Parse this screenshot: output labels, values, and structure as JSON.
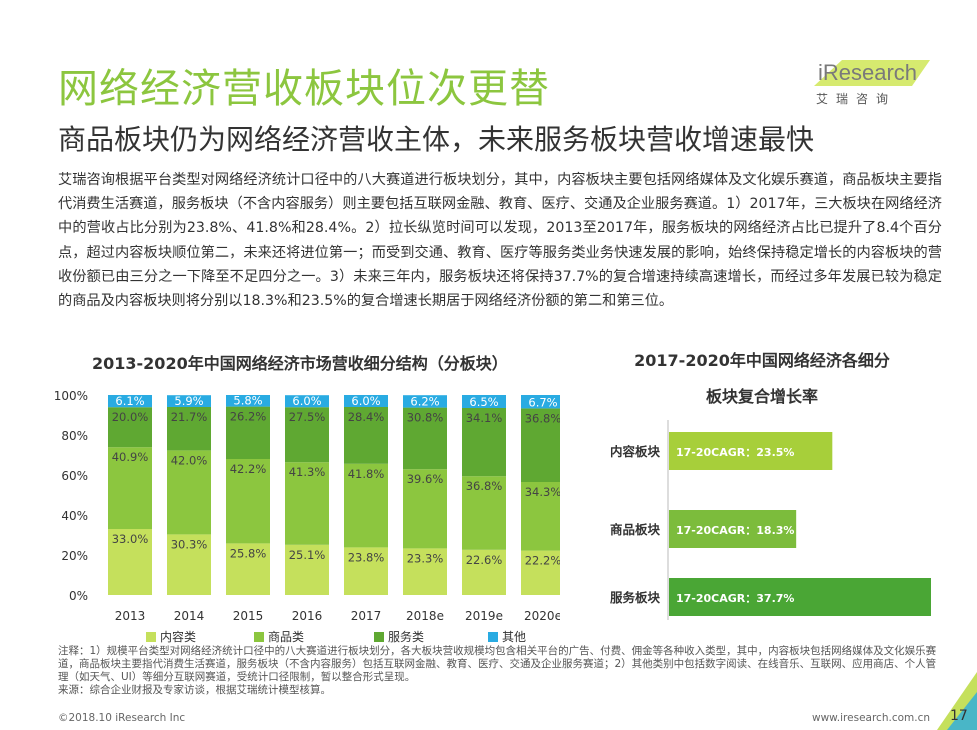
{
  "header": {
    "title": "网络经济营收板块位次更替",
    "subtitle": "商品板块仍为网络经济营收主体，未来服务板块营收增速最快",
    "logo_text": "iResearch",
    "logo_sub": "艾瑞咨询"
  },
  "body_text": "艾瑞咨询根据平台类型对网络经济统计口径中的八大赛道进行板块划分，其中，内容板块主要包括网络媒体及文化娱乐赛道，商品板块主要指代消费生活赛道，服务板块（不含内容服务）则主要包括互联网金融、教育、医疗、交通及企业服务赛道。1）2017年，三大板块在网络经济中的营收占比分别为23.8%、41.8%和28.4%。2）拉长纵览时间可以发现，2013至2017年，服务板块的网络经济占比已提升了8.4个百分点，超过内容板块顺位第二，未来还将进位第一；而受到交通、教育、医疗等服务类业务快速发展的影响，始终保持稳定增长的内容板块的营收份额已由三分之一下降至不足四分之一。3）未来三年内，服务板块还将保持37.7%的复合增速持续高速增长，而经过多年发展已较为稳定的商品及内容板块则将分别以18.3%和23.5%的复合增速长期居于网络经济份额的第二和第三位。",
  "chart_data": [
    {
      "type": "bar",
      "stacked": true,
      "title": "2013-2020年中国网络经济市场营收细分结构（分板块）",
      "categories": [
        "2013",
        "2014",
        "2015",
        "2016",
        "2017",
        "2018e",
        "2019e",
        "2020e"
      ],
      "ylim": [
        0,
        100
      ],
      "yticks": [
        "0%",
        "20%",
        "40%",
        "60%",
        "80%",
        "100%"
      ],
      "series": [
        {
          "name": "内容类",
          "color": "#c5e05c",
          "values": [
            33.0,
            30.3,
            25.8,
            25.1,
            23.8,
            23.3,
            22.6,
            22.2
          ]
        },
        {
          "name": "商品类",
          "color": "#8cc63f",
          "values": [
            40.9,
            42.0,
            42.2,
            41.3,
            41.8,
            39.6,
            36.8,
            34.3
          ]
        },
        {
          "name": "服务类",
          "color": "#5fa832",
          "values": [
            20.0,
            21.7,
            26.2,
            27.5,
            28.4,
            30.8,
            34.1,
            36.8
          ]
        },
        {
          "name": "其他",
          "color": "#29abe2",
          "values": [
            6.1,
            5.9,
            5.8,
            6.0,
            6.0,
            6.2,
            6.5,
            6.7
          ]
        }
      ],
      "labels": [
        [
          "33.0%",
          "30.3%",
          "25.8%",
          "25.1%",
          "23.8%",
          "23.3%",
          "22.6%",
          "22.2%"
        ],
        [
          "40.9%",
          "42.0%",
          "42.2%",
          "41.3%",
          "41.8%",
          "39.6%",
          "36.8%",
          "34.3%"
        ],
        [
          "20.0%",
          "21.7%",
          "26.2%",
          "27.5%",
          "28.4%",
          "30.8%",
          "34.1%",
          "36.8%"
        ],
        [
          "6.1%",
          "5.9%",
          "5.8%",
          "6.0%",
          "6.0%",
          "6.2%",
          "6.5%",
          "6.7%"
        ]
      ]
    },
    {
      "type": "bar",
      "orientation": "horizontal",
      "title_line1": "2017-2020年中国网络经济各细分",
      "title_line2": "板块复合增长率",
      "categories": [
        "内容板块",
        "商品板块",
        "服务板块"
      ],
      "values": [
        23.5,
        18.3,
        37.7
      ],
      "labels": [
        "17-20CAGR：23.5%",
        "17-20CAGR：18.3%",
        "17-20CAGR：37.7%"
      ],
      "colors": [
        "#a7cf3a",
        "#7cbc3c",
        "#4aa635"
      ]
    }
  ],
  "notes": "注释：1）规模平台类型对网络经济统计口径中的八大赛道进行板块划分，各大板块营收规模均包含相关平台的广告、付费、佣金等各种收入类型，其中，内容板块包括网络媒体及文化娱乐赛道，商品板块主要指代消费生活赛道，服务板块（不含内容服务）包括互联网金融、教育、医疗、交通及企业服务赛道；2）其他类别中包括数字阅读、在线音乐、互联网、应用商店、个人管理（如天气、UI）等细分互联网赛道，受统计口径限制，暂以整合形式呈现。",
  "source": "来源：综合企业财报及专家访谈，根据艾瑞统计模型核算。",
  "footer": {
    "copyright": "©2018.10 iResearch Inc",
    "website": "www.iresearch.com.cn",
    "page": "17"
  }
}
